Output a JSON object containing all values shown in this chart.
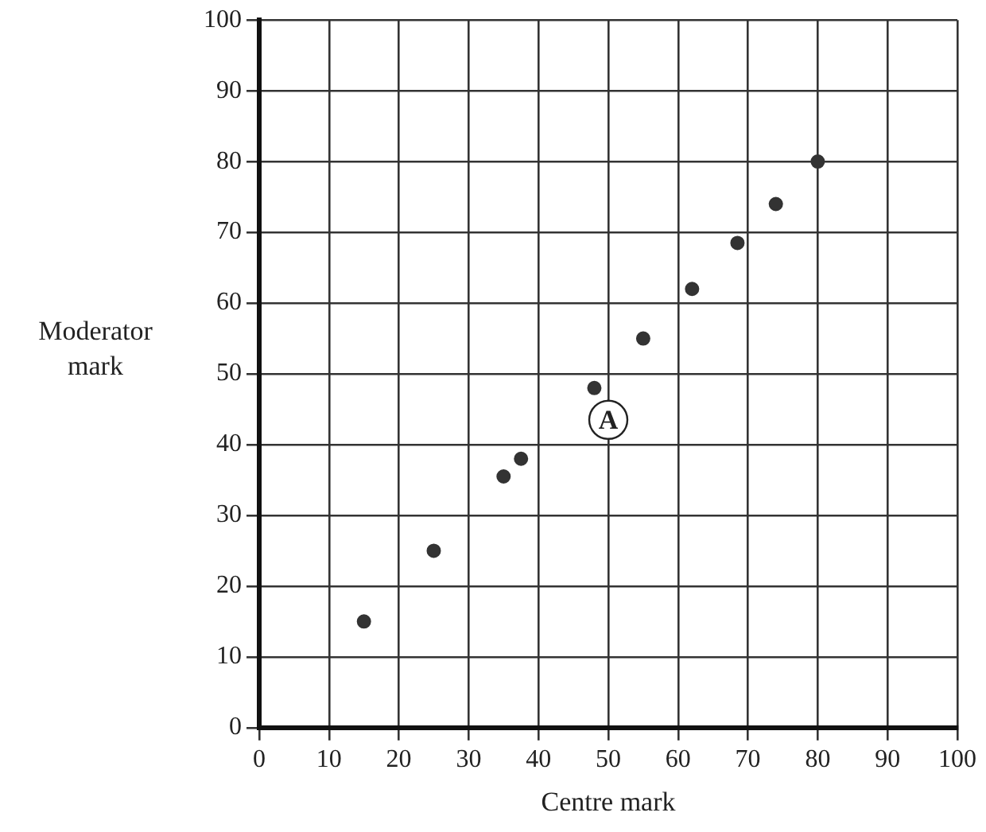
{
  "chart_data": {
    "type": "scatter",
    "xlabel": "Centre mark",
    "ylabel": "Moderator mark",
    "x": [
      15,
      25,
      35,
      37.5,
      48,
      55,
      62,
      68.5,
      74,
      80
    ],
    "values": [
      15,
      25,
      35.5,
      38,
      48,
      55,
      62,
      68.5,
      74,
      80
    ],
    "color": "#333333",
    "marker": "circle",
    "grid": true,
    "legend": false,
    "xlim": [
      0,
      100
    ],
    "xticks": [
      0,
      10,
      20,
      30,
      40,
      50,
      60,
      70,
      80,
      90,
      100
    ],
    "ylim": [
      0,
      100
    ],
    "yticks": [
      0,
      10,
      20,
      30,
      40,
      50,
      60,
      70,
      80,
      90,
      100
    ],
    "annotations": [
      {
        "text": "A",
        "x": 50,
        "y": 43.5
      }
    ]
  }
}
